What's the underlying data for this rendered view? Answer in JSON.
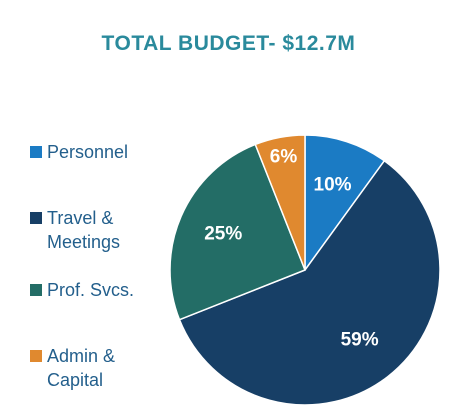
{
  "chart_data": {
    "type": "pie",
    "title": "TOTAL BUDGET- $12.7M",
    "categories": [
      "Personnel",
      "Travel & Meetings",
      "Prof. Svcs.",
      "Admin & Capital"
    ],
    "values": [
      10,
      59,
      25,
      6
    ],
    "value_labels": [
      "10%",
      "59%",
      "25%",
      "6%"
    ],
    "colors": [
      "#1b7bc4",
      "#173f66",
      "#236d66",
      "#e0892f"
    ],
    "legend": "left"
  }
}
